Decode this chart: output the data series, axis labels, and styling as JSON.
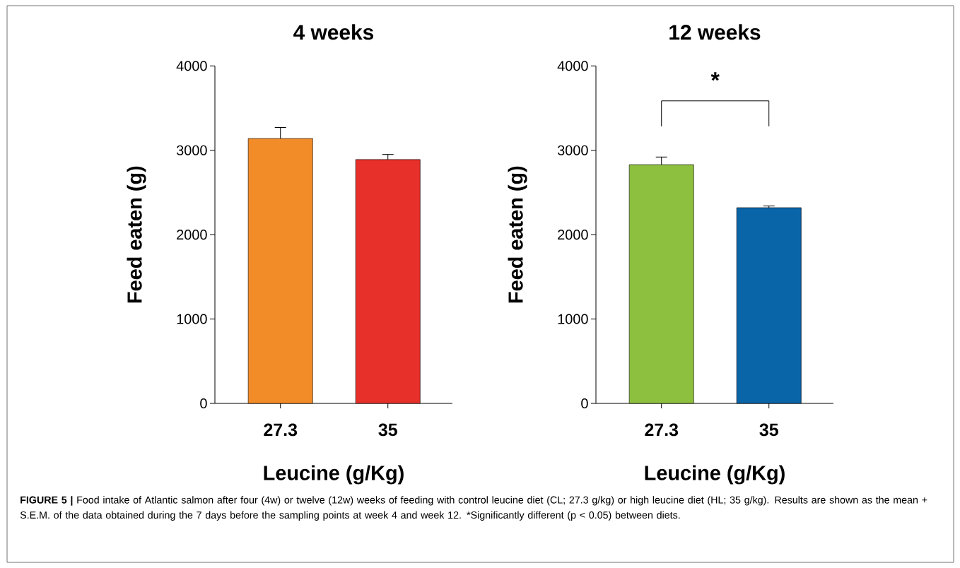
{
  "chart_data": [
    {
      "type": "bar",
      "title": "4 weeks",
      "xlabel": "Leucine (g/Kg)",
      "ylabel": "Feed eaten (g)",
      "categories": [
        "27.3",
        "35"
      ],
      "values": [
        3140,
        2890
      ],
      "errors": [
        130,
        60
      ],
      "colors": [
        "#f28c28",
        "#e8302a"
      ],
      "ylim": [
        0,
        4000
      ],
      "yticks": [
        0,
        1000,
        2000,
        3000,
        4000
      ],
      "annotations": [
        "**FIGURE 5 |** Food intake of Atlantic salmon after four (4w) or twelve (12w) weeks of feeding with control leucine diet (CL; 27.3 g/kg) or high leucine diet (HL; 35 g/kg). Results are shown as the mean + S.E.M. of the data obtained during the 7 days before the sampling points at week 4 and week 12. *Significantly different (p < 0.05) between diets."
      ]
    },
    {
      "type": "bar",
      "title": "12 weeks",
      "xlabel": "Leucine (g/Kg)",
      "ylabel": "Feed eaten (g)",
      "categories": [
        "27.3",
        "35"
      ],
      "values": [
        2830,
        2320
      ],
      "errors": [
        90,
        20
      ],
      "colors": [
        "#8dc03f",
        "#0a64a8"
      ],
      "ylim": [
        0,
        4000
      ],
      "yticks": [
        0,
        1000,
        2000,
        3000,
        4000
      ],
      "annotations": [
        "*"
      ]
    }
  ]
}
